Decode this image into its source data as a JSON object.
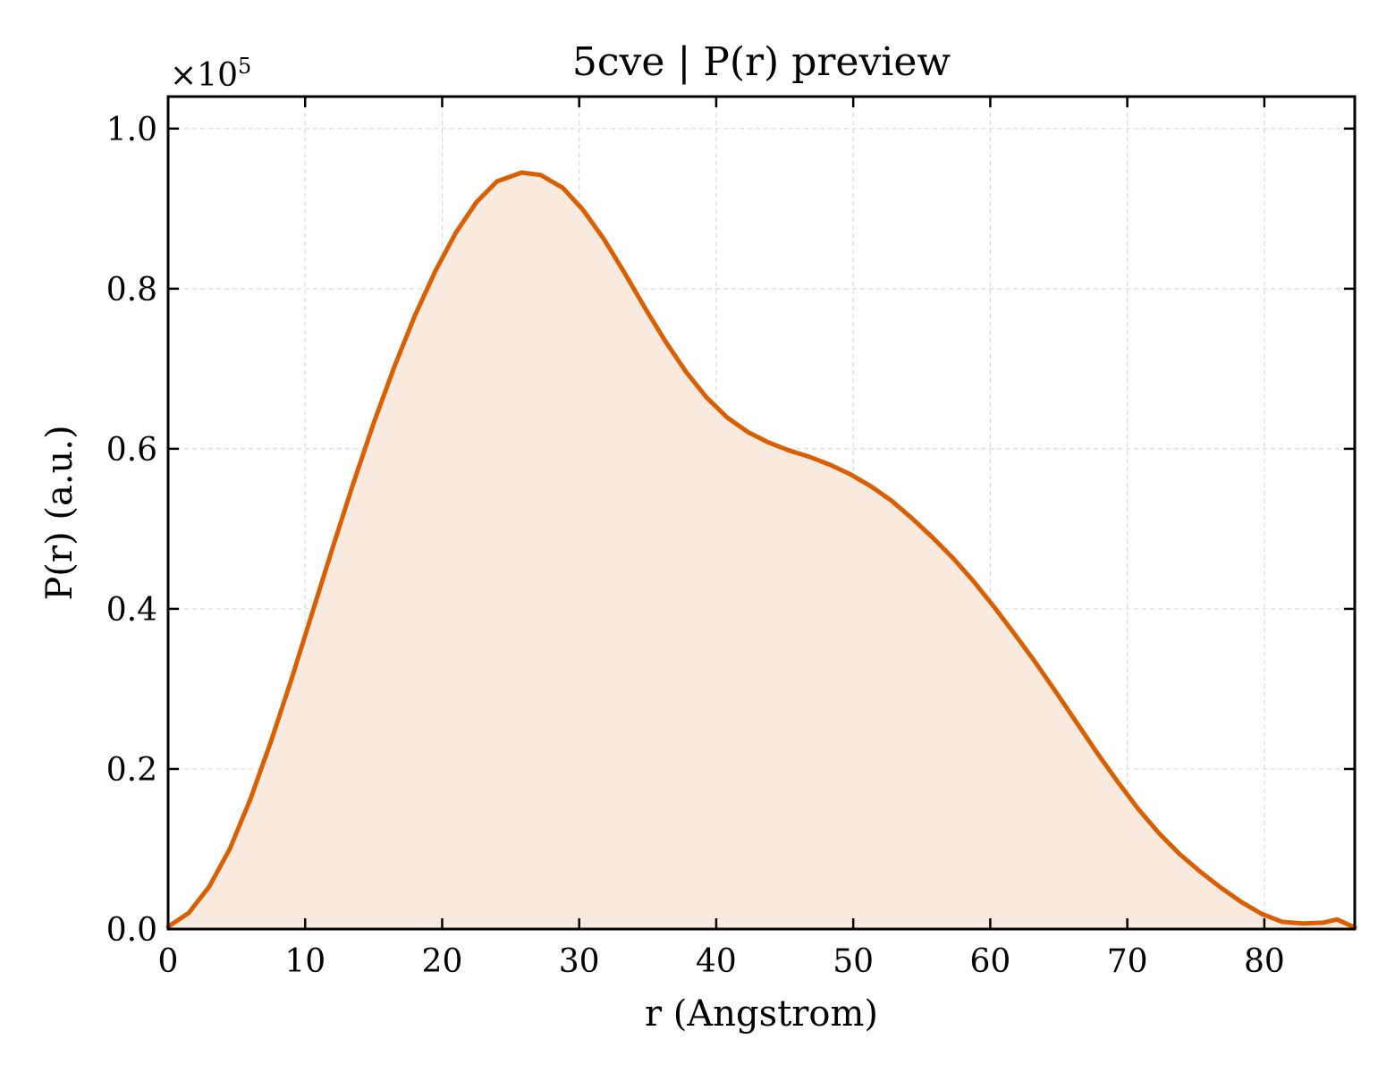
{
  "chart_data": {
    "type": "area",
    "title": "5cve | P(r) preview",
    "xlabel": "r (Angstrom)",
    "ylabel": "P(r) (a.u.)",
    "y_offset_label": {
      "prefix": "×10",
      "exponent": "5"
    },
    "xlim": [
      0,
      86.6
    ],
    "ylim": [
      0,
      1.04
    ],
    "y_scale_multiplier": 100000,
    "x_ticks": [
      0,
      10,
      20,
      30,
      40,
      50,
      60,
      70,
      80
    ],
    "x_tick_labels": [
      "0",
      "10",
      "20",
      "30",
      "40",
      "50",
      "60",
      "70",
      "80"
    ],
    "y_ticks": [
      0.0,
      0.2,
      0.4,
      0.6,
      0.8,
      1.0
    ],
    "y_tick_labels": [
      "0.0",
      "0.2",
      "0.4",
      "0.6",
      "0.8",
      "1.0"
    ],
    "grid": true,
    "colors": {
      "line": "#d95f02",
      "fill": "#f9eadf",
      "grid": "#d9d9d9",
      "axes": "#000000"
    },
    "series": [
      {
        "x": [
          0,
          1.5,
          3.0,
          4.5,
          6.0,
          7.5,
          9.0,
          10.5,
          12.0,
          13.5,
          15.0,
          16.5,
          18.0,
          19.5,
          21.0,
          22.5,
          24.0,
          25.8,
          27.2,
          28.8,
          30.3,
          31.8,
          33.3,
          34.8,
          36.3,
          37.8,
          39.3,
          40.8,
          42.3,
          43.8,
          45.3,
          46.8,
          48.3,
          49.8,
          51.3,
          52.8,
          54.3,
          55.8,
          57.3,
          58.8,
          60.3,
          61.8,
          63.3,
          64.8,
          66.3,
          67.8,
          69.3,
          70.8,
          72.3,
          73.8,
          75.3,
          76.8,
          78.3,
          79.8,
          81.3,
          82.8,
          84.3,
          85.3,
          86.6
        ],
        "y": [
          0.003,
          0.02,
          0.053,
          0.1,
          0.162,
          0.234,
          0.312,
          0.394,
          0.476,
          0.556,
          0.632,
          0.702,
          0.766,
          0.822,
          0.87,
          0.908,
          0.934,
          0.945,
          0.942,
          0.926,
          0.898,
          0.862,
          0.82,
          0.776,
          0.734,
          0.696,
          0.664,
          0.639,
          0.621,
          0.608,
          0.598,
          0.59,
          0.58,
          0.568,
          0.553,
          0.535,
          0.513,
          0.489,
          0.463,
          0.434,
          0.402,
          0.368,
          0.333,
          0.296,
          0.258,
          0.22,
          0.184,
          0.15,
          0.12,
          0.094,
          0.072,
          0.052,
          0.034,
          0.019,
          0.009,
          0.007,
          0.008,
          0.012,
          0.002
        ]
      }
    ]
  }
}
